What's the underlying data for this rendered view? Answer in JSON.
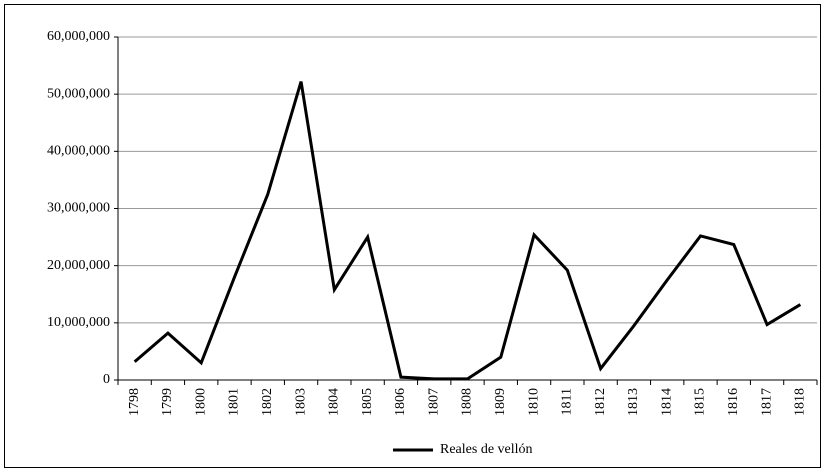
{
  "chart_data": {
    "type": "line",
    "categories": [
      "1798",
      "1799",
      "1800",
      "1801",
      "1802",
      "1803",
      "1804",
      "1805",
      "1806",
      "1807",
      "1808",
      "1809",
      "1810",
      "1811",
      "1812",
      "1813",
      "1814",
      "1815",
      "1816",
      "1817",
      "1818"
    ],
    "series": [
      {
        "name": "Reales de vellón",
        "color": "#000000",
        "values": [
          3200000,
          8200000,
          3000000,
          18000000,
          32500000,
          52200000,
          15800000,
          25000000,
          500000,
          200000,
          200000,
          4000000,
          25400000,
          19200000,
          2000000,
          9500000,
          17500000,
          25200000,
          23700000,
          9700000,
          13200000
        ]
      }
    ],
    "ylim": [
      0,
      60000000
    ],
    "yticks": [
      0,
      {
        "value": 10000000,
        "label": "10,000,000"
      },
      {
        "value": 20000000,
        "label": "20,000,000"
      },
      {
        "value": 30000000,
        "label": "30,000,000"
      },
      {
        "value": 40000000,
        "label": "40,000,000"
      },
      {
        "value": 50000000,
        "label": "50,000,000"
      },
      {
        "value": 60000000,
        "label": "60,000,000"
      }
    ],
    "grid": true,
    "legend": "bottom"
  }
}
